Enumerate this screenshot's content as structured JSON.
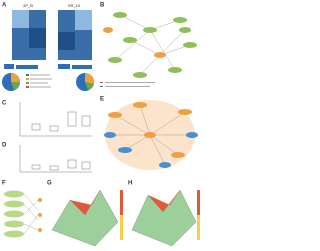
{
  "figure": {
    "panels": {
      "a": {
        "label": "A",
        "heatmaps": [
          "2P_B",
          "SS_10"
        ]
      },
      "b": {
        "label": "B"
      },
      "c": {
        "label": "C"
      },
      "d": {
        "label": "D"
      },
      "e": {
        "label": "E"
      },
      "f": {
        "label": "F"
      },
      "g": {
        "label": "G"
      },
      "h": {
        "label": "H"
      }
    }
  }
}
